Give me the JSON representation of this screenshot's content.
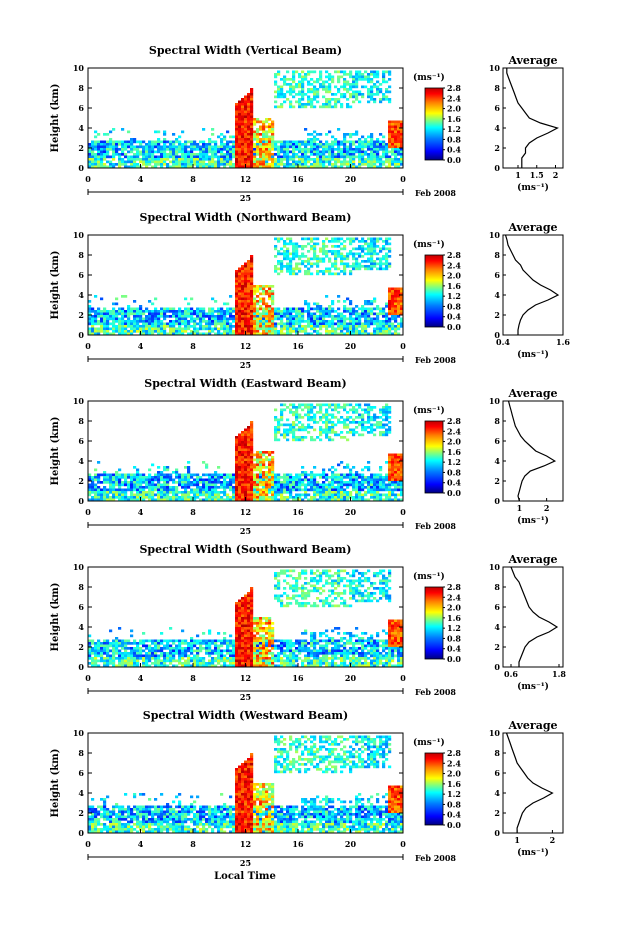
{
  "figure": {
    "xlabel": "Local Time",
    "date_day": "25",
    "date_label": "Feb 2008",
    "ylabel": "Height (km)",
    "colorbar_unit": "(ms⁻¹)",
    "avg_title": "Average",
    "avg_xlabel": "(ms⁻¹)"
  },
  "chart_data": [
    {
      "type": "heatmap",
      "title": "Spectral Width (Vertical Beam)",
      "x_ticks": [
        "0",
        "4",
        "8",
        "12",
        "16",
        "20",
        "0"
      ],
      "xlim": [
        0,
        24
      ],
      "y_ticks": [
        "0",
        "2",
        "4",
        "6",
        "8",
        "10"
      ],
      "ylim": [
        0,
        10
      ],
      "colorbar_ticks": [
        "0.0",
        "0.4",
        "0.8",
        "1.2",
        "1.6",
        "2.0",
        "2.4",
        "2.8"
      ],
      "colorbar_range": [
        0,
        2.8
      ],
      "average_profile": {
        "x_ticks": [
          "1",
          "1.5",
          "2"
        ],
        "xlim": [
          0.6,
          2.2
        ],
        "height": [
          0,
          0.5,
          1,
          1.5,
          2,
          2.5,
          3,
          3.5,
          4,
          4.5,
          5,
          5.5,
          6,
          6.5,
          7,
          7.5,
          8,
          8.5,
          9,
          9.5,
          10
        ],
        "width": [
          1.1,
          1.1,
          1.1,
          1.2,
          1.2,
          1.3,
          1.5,
          1.8,
          2.05,
          1.6,
          1.3,
          1.2,
          1.1,
          1.0,
          0.95,
          0.9,
          0.85,
          0.8,
          0.75,
          0.7,
          0.7
        ]
      }
    },
    {
      "type": "heatmap",
      "title": "Spectral Width (Northward Beam)",
      "x_ticks": [
        "0",
        "4",
        "8",
        "12",
        "16",
        "20",
        "0"
      ],
      "xlim": [
        0,
        24
      ],
      "y_ticks": [
        "0",
        "2",
        "4",
        "6",
        "8",
        "10"
      ],
      "ylim": [
        0,
        10
      ],
      "colorbar_ticks": [
        "0.0",
        "0.4",
        "0.8",
        "1.2",
        "1.6",
        "2.0",
        "2.4",
        "2.8"
      ],
      "colorbar_range": [
        0,
        2.8
      ],
      "average_profile": {
        "x_ticks": [
          "0.4",
          "1.6"
        ],
        "xlim": [
          0.4,
          1.6
        ],
        "height": [
          0,
          0.5,
          1,
          1.5,
          2,
          2.5,
          3,
          3.5,
          4,
          4.5,
          5,
          5.5,
          6,
          6.5,
          7,
          7.5,
          8,
          8.5,
          9,
          9.5,
          10
        ],
        "width": [
          0.7,
          0.7,
          0.72,
          0.75,
          0.8,
          0.9,
          1.05,
          1.3,
          1.5,
          1.35,
          1.15,
          1.0,
          0.9,
          0.8,
          0.75,
          0.65,
          0.6,
          0.55,
          0.5,
          0.48,
          0.45
        ]
      }
    },
    {
      "type": "heatmap",
      "title": "Spectral Width (Eastward Beam)",
      "x_ticks": [
        "0",
        "4",
        "8",
        "12",
        "16",
        "20",
        "0"
      ],
      "xlim": [
        0,
        24
      ],
      "y_ticks": [
        "0",
        "2",
        "4",
        "6",
        "8",
        "10"
      ],
      "ylim": [
        0,
        10
      ],
      "colorbar_ticks": [
        "0.0",
        "0.4",
        "0.8",
        "1.2",
        "1.6",
        "2.0",
        "2.4",
        "2.8"
      ],
      "colorbar_range": [
        0,
        2.8
      ],
      "average_profile": {
        "x_ticks": [
          "1",
          "2"
        ],
        "xlim": [
          0.4,
          2.6
        ],
        "height": [
          0,
          0.5,
          1,
          1.5,
          2,
          2.5,
          3,
          3.5,
          4,
          4.5,
          5,
          5.5,
          6,
          6.5,
          7,
          7.5,
          8,
          8.5,
          9,
          9.5,
          10
        ],
        "width": [
          1.0,
          0.95,
          1.0,
          1.05,
          1.1,
          1.2,
          1.4,
          1.9,
          2.3,
          2.0,
          1.6,
          1.4,
          1.2,
          1.05,
          0.95,
          0.85,
          0.8,
          0.75,
          0.7,
          0.65,
          0.6
        ]
      }
    },
    {
      "type": "heatmap",
      "title": "Spectral Width (Southward Beam)",
      "x_ticks": [
        "0",
        "4",
        "8",
        "12",
        "16",
        "20",
        "0"
      ],
      "xlim": [
        0,
        24
      ],
      "y_ticks": [
        "0",
        "2",
        "4",
        "6",
        "8",
        "10"
      ],
      "ylim": [
        0,
        10
      ],
      "colorbar_ticks": [
        "0.0",
        "0.4",
        "0.8",
        "1.2",
        "1.6",
        "2.0",
        "2.4",
        "2.8"
      ],
      "colorbar_range": [
        0,
        2.8
      ],
      "average_profile": {
        "x_ticks": [
          "0.6",
          "1.8"
        ],
        "xlim": [
          0.4,
          1.9
        ],
        "height": [
          0,
          0.5,
          1,
          1.5,
          2,
          2.5,
          3,
          3.5,
          4,
          4.5,
          5,
          5.5,
          6,
          6.5,
          7,
          7.5,
          8,
          8.5,
          9,
          9.5,
          10
        ],
        "width": [
          0.8,
          0.8,
          0.85,
          0.9,
          0.95,
          1.05,
          1.25,
          1.55,
          1.75,
          1.55,
          1.3,
          1.15,
          1.05,
          1.0,
          0.95,
          0.9,
          0.85,
          0.8,
          0.7,
          0.65,
          0.6
        ]
      }
    },
    {
      "type": "heatmap",
      "title": "Spectral Width (Westward Beam)",
      "x_ticks": [
        "0",
        "4",
        "8",
        "12",
        "16",
        "20",
        "0"
      ],
      "xlim": [
        0,
        24
      ],
      "y_ticks": [
        "0",
        "2",
        "4",
        "6",
        "8",
        "10"
      ],
      "ylim": [
        0,
        10
      ],
      "colorbar_ticks": [
        "0.0",
        "0.4",
        "0.8",
        "1.2",
        "1.6",
        "2.0",
        "2.4",
        "2.8"
      ],
      "colorbar_range": [
        0,
        2.8
      ],
      "average_profile": {
        "x_ticks": [
          "1",
          "2"
        ],
        "xlim": [
          0.6,
          2.3
        ],
        "height": [
          0,
          0.5,
          1,
          1.5,
          2,
          2.5,
          3,
          3.5,
          4,
          4.5,
          5,
          5.5,
          6,
          6.5,
          7,
          7.5,
          8,
          8.5,
          9,
          9.5,
          10
        ],
        "width": [
          1.0,
          1.0,
          1.05,
          1.1,
          1.15,
          1.25,
          1.45,
          1.75,
          2.0,
          1.7,
          1.45,
          1.3,
          1.2,
          1.1,
          1.0,
          0.95,
          0.9,
          0.85,
          0.8,
          0.75,
          0.7
        ]
      }
    }
  ]
}
